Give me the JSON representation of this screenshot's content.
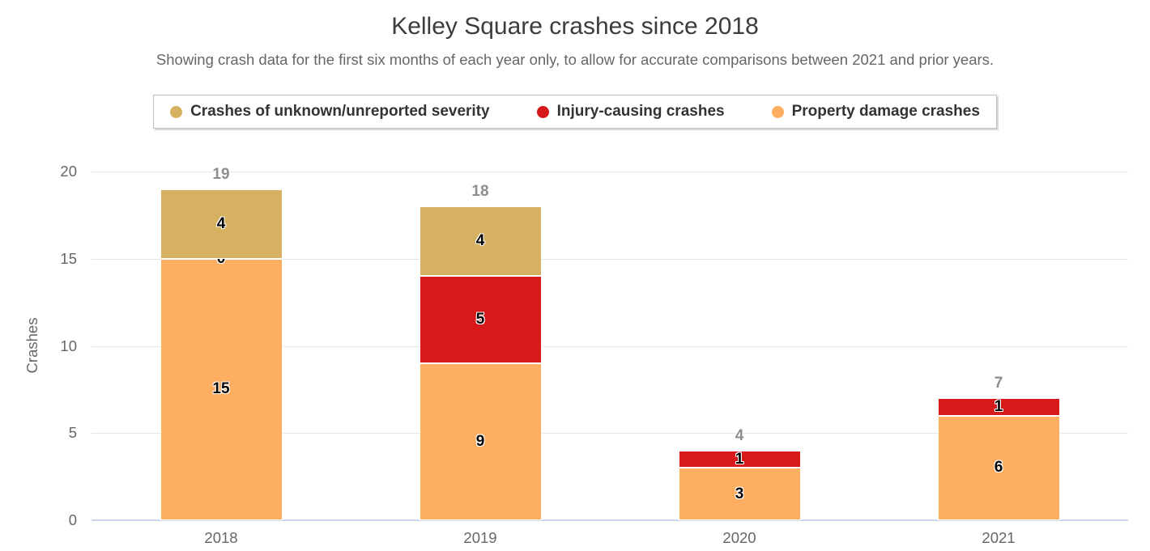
{
  "header": {
    "title": "Kelley Square crashes since 2018",
    "subtitle": "Showing crash data for the first six months of each year only, to allow for accurate comparisons between 2021 and prior years."
  },
  "legend": {
    "items": [
      {
        "label": "Crashes of unknown/unreported severity",
        "color": "#d6b161"
      },
      {
        "label": "Injury-causing crashes",
        "color": "#d7191c"
      },
      {
        "label": "Property damage crashes",
        "color": "#fdae61"
      }
    ]
  },
  "chart_data": {
    "type": "bar",
    "stacked": true,
    "title": "Kelley Square crashes since 2018",
    "subtitle": "Showing crash data for the first six months of each year only, to allow for accurate comparisons between 2021 and prior years.",
    "xlabel": "",
    "ylabel": "Crashes",
    "ylim": [
      0,
      20
    ],
    "yticks": [
      0,
      5,
      10,
      15,
      20
    ],
    "grid": true,
    "legend_position": "top",
    "categories": [
      "2018",
      "2019",
      "2020",
      "2021"
    ],
    "series": [
      {
        "name": "Property damage crashes",
        "color": "#fdae61",
        "values": [
          15,
          9,
          3,
          6
        ],
        "labels": [
          "15",
          "9",
          "3",
          "6"
        ]
      },
      {
        "name": "Injury-causing crashes",
        "color": "#d7191c",
        "values": [
          0,
          5,
          1,
          1
        ],
        "labels": [
          "0",
          "5",
          "1",
          "1"
        ]
      },
      {
        "name": "Crashes of unknown/unreported severity",
        "color": "#d6b161",
        "values": [
          4,
          4,
          0,
          0
        ],
        "labels": [
          "4",
          "4",
          "",
          ""
        ]
      }
    ],
    "totals": [
      "19",
      "18",
      "4",
      "7"
    ]
  },
  "colors": {
    "unknown_severity": "#d6b161",
    "injury": "#d7191c",
    "property_damage": "#fdae61",
    "gridline": "#e6e6e6",
    "axis_baseline": "#ccd6eb",
    "total_label": "#8d8d8d"
  }
}
